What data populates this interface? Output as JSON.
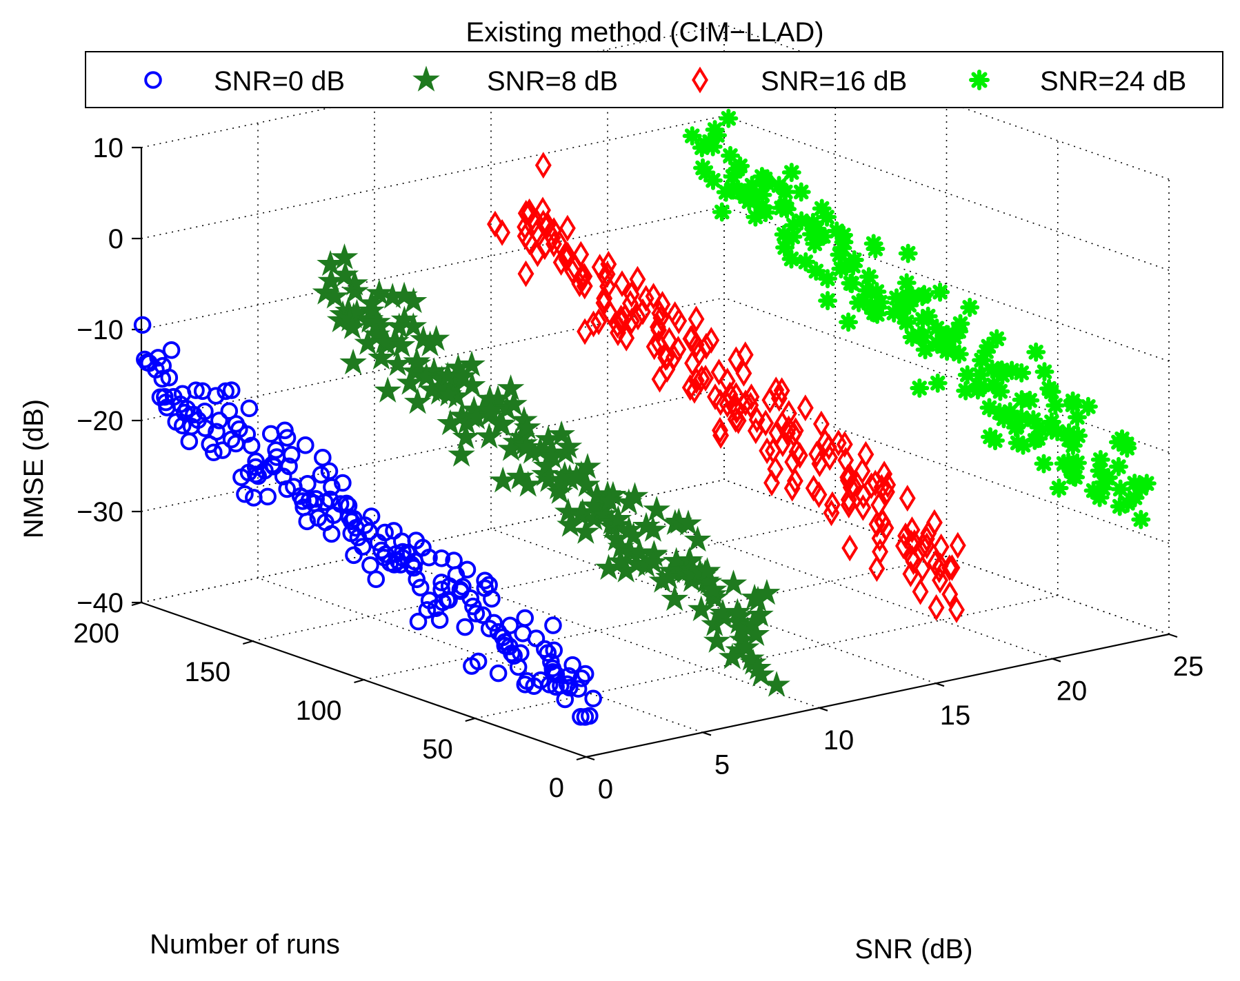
{
  "chart_data": {
    "type": "scatter3d",
    "title": "Existing method (CIM−LLAD)",
    "xlabel": "SNR (dB)",
    "ylabel": "Number of runs",
    "zlabel": "NMSE (dB)",
    "xlim": [
      0,
      25
    ],
    "ylim": [
      0,
      200
    ],
    "zlim": [
      -40,
      10
    ],
    "grid": true,
    "legend_position": "top",
    "x_ticks": [
      0,
      5,
      10,
      15,
      20,
      25
    ],
    "y_ticks": [
      0,
      50,
      100,
      150,
      200
    ],
    "z_ticks": [
      -40,
      -30,
      -20,
      -10,
      0,
      10
    ],
    "x_tick_labels": [
      "0",
      "5",
      "10",
      "15",
      "20",
      "25"
    ],
    "y_tick_labels": [
      "0",
      "50",
      "100",
      "150",
      "200"
    ],
    "z_tick_labels": [
      "−40",
      "−30",
      "−20",
      "−10",
      "0",
      "10"
    ],
    "series": [
      {
        "name": "SNR=0 dB",
        "label": "SNR=0 dB",
        "snr": 0,
        "marker": "circle",
        "color": "#0000ff",
        "points": 200,
        "nmse_start": -14,
        "nmse_end": -34,
        "nmse_spread": 5.5
      },
      {
        "name": "SNR=8 dB",
        "label": "SNR=8 dB",
        "snr": 8,
        "marker": "star",
        "color": "#1f7a1f",
        "points": 200,
        "nmse_start": -10,
        "nmse_end": -32,
        "nmse_spread": 6
      },
      {
        "name": "SNR=16 dB",
        "label": "SNR=16 dB",
        "snr": 16,
        "marker": "diamond",
        "color": "#ff0000",
        "points": 200,
        "nmse_start": -6,
        "nmse_end": -29,
        "nmse_spread": 7
      },
      {
        "name": "SNR=24 dB",
        "label": "SNR=24 dB",
        "snr": 24,
        "marker": "asterisk",
        "color": "#00ee00",
        "points": 200,
        "nmse_start": -3,
        "nmse_end": -24,
        "nmse_spread": 7
      }
    ]
  }
}
